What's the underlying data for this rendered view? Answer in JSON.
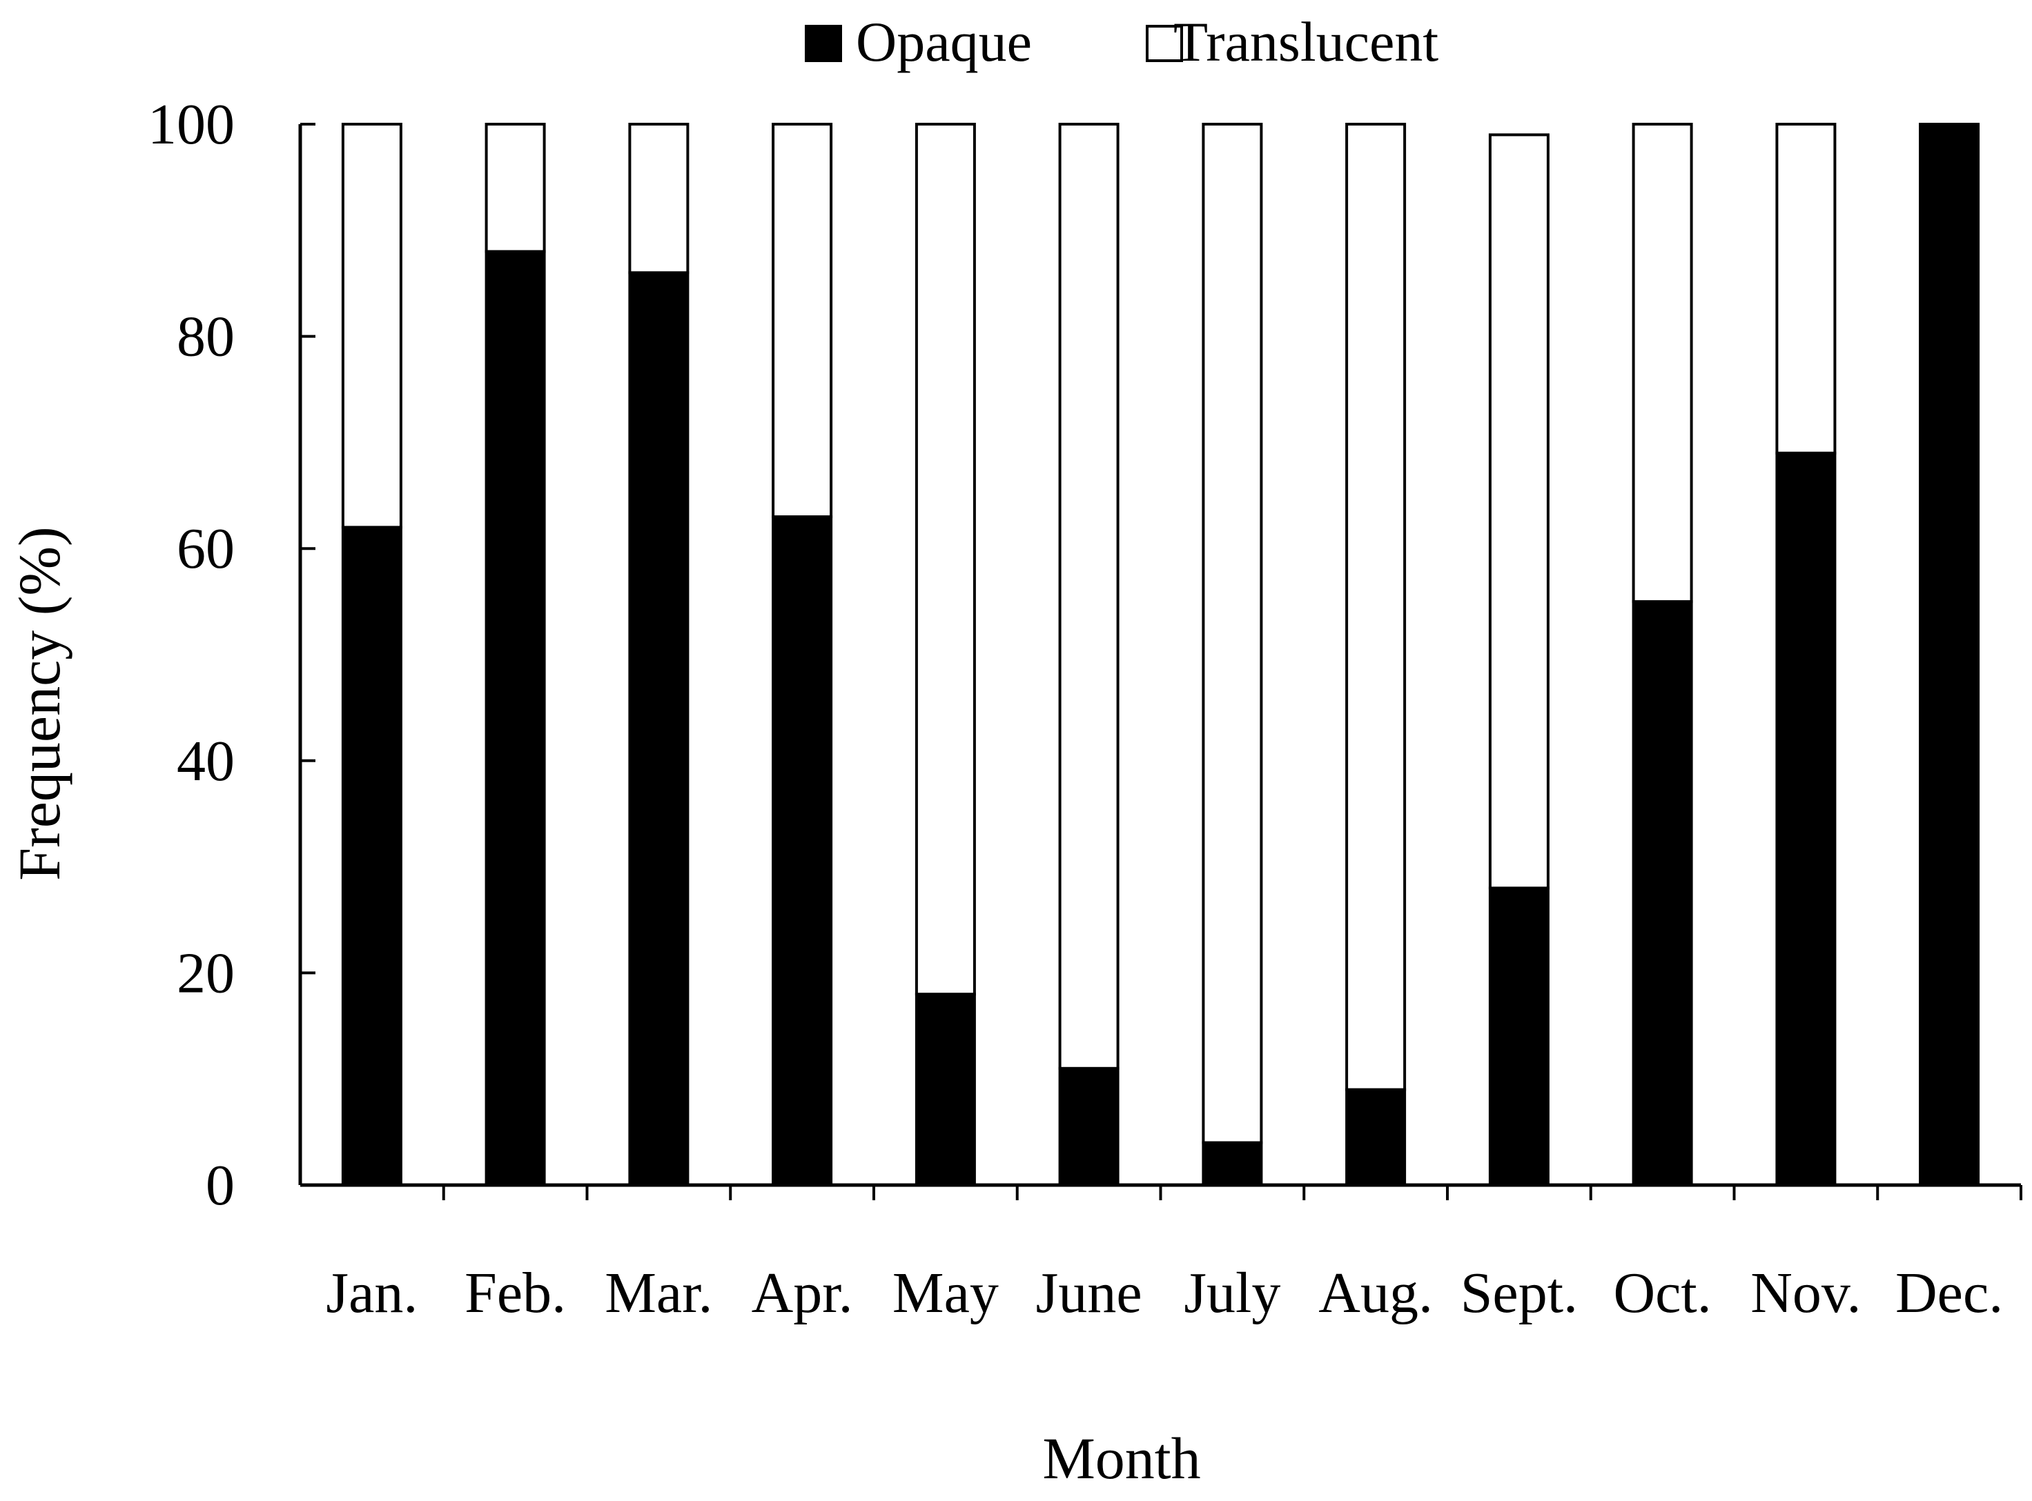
{
  "chart_data": {
    "type": "bar",
    "stacked": true,
    "title": "",
    "xlabel": "Month",
    "ylabel": "Frequency (%)",
    "ylim": [
      0,
      100
    ],
    "yticks": [
      0,
      20,
      40,
      60,
      80,
      100
    ],
    "grid": false,
    "legend_position": "top-center",
    "categories": [
      "Jan.",
      "Feb.",
      "Mar.",
      "Apr.",
      "May",
      "June",
      "July",
      "Aug.",
      "Sept.",
      "Oct.",
      "Nov.",
      "Dec."
    ],
    "series": [
      {
        "name": "Opaque",
        "color": "#000000",
        "values": [
          62,
          88,
          86,
          63,
          18,
          11,
          4,
          9,
          28,
          55,
          69,
          100
        ]
      },
      {
        "name": "Translucent",
        "color": "#ffffff",
        "values": [
          38,
          12,
          14,
          37,
          82,
          89,
          96,
          91,
          71,
          45,
          31,
          0
        ]
      }
    ]
  }
}
